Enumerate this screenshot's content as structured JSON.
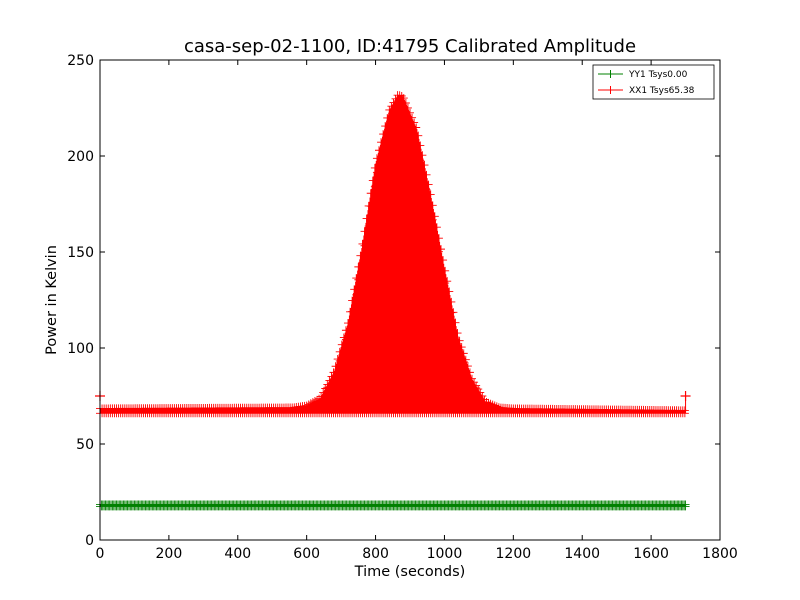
{
  "chart_data": {
    "type": "line",
    "title": "casa-sep-02-1100, ID:41795 Calibrated Amplitude",
    "xlabel": "Time (seconds)",
    "ylabel": "Power in Kelvin",
    "xlim": [
      0,
      1800
    ],
    "ylim": [
      0,
      250
    ],
    "xticks": [
      "0",
      "200",
      "400",
      "600",
      "800",
      "1000",
      "1200",
      "1400",
      "1600",
      "1800"
    ],
    "yticks": [
      "0",
      "50",
      "100",
      "150",
      "200",
      "250"
    ],
    "grid": false,
    "legend_position": "top-right",
    "series": [
      {
        "name": "YY1 Tsys0.00",
        "color": "#008000",
        "marker": "+",
        "x_start": 0,
        "x_end": 1700,
        "baseline": 17.5,
        "envelope": [
          [
            0,
            18.5
          ],
          [
            1700,
            18.5
          ]
        ]
      },
      {
        "name": "XX1 Tsys65.38",
        "color": "#ff0000",
        "marker": "+",
        "x_start": 0,
        "x_end": 1700,
        "baseline": 66,
        "endpoint_values": [
          [
            0,
            75
          ],
          [
            1700,
            75
          ]
        ],
        "envelope": [
          [
            0,
            68.5
          ],
          [
            560,
            69
          ],
          [
            600,
            70
          ],
          [
            640,
            74
          ],
          [
            680,
            88
          ],
          [
            720,
            113
          ],
          [
            760,
            152
          ],
          [
            800,
            196
          ],
          [
            840,
            224
          ],
          [
            865,
            232
          ],
          [
            880,
            231
          ],
          [
            920,
            214
          ],
          [
            960,
            180
          ],
          [
            1000,
            142
          ],
          [
            1040,
            106
          ],
          [
            1080,
            84
          ],
          [
            1120,
            72
          ],
          [
            1160,
            69
          ],
          [
            1200,
            68.5
          ],
          [
            1700,
            67.5
          ]
        ]
      }
    ]
  }
}
